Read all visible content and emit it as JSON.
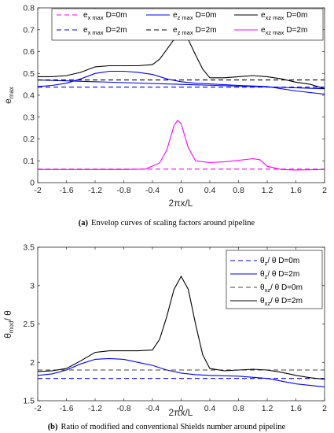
{
  "chart_data": [
    {
      "type": "line",
      "caption_tag": "(a)",
      "caption": "Envelop curves of scaling factors around pipeline",
      "xlabel": "2πx/L",
      "ylabel": "e",
      "ylabel_sub": "max",
      "xlim": [
        -2,
        2
      ],
      "ylim": [
        0,
        0.8
      ],
      "xticks": [
        -2,
        -1.6,
        -1.2,
        -0.8,
        -0.4,
        0,
        0.4,
        0.8,
        1.2,
        1.6,
        2
      ],
      "xtick_labels": [
        "-2",
        "-1.6",
        "-1.2",
        "-0.8",
        "-0.4",
        "0",
        "0.4",
        "0.8",
        "1.2",
        "1.6",
        "2"
      ],
      "yticks": [
        0,
        0.1,
        0.2,
        0.3,
        0.4,
        0.5,
        0.6,
        0.7,
        0.8
      ],
      "ytick_labels": [
        "0",
        "0.1",
        "0.2",
        "0.3",
        "0.4",
        "0.5",
        "0.6",
        "0.7",
        "0.8"
      ],
      "legend_position": "top",
      "series": [
        {
          "name": "e_x max D=0m",
          "label_main": "e",
          "label_sub": "x max",
          "label_tail": "D=0m",
          "color": "#ff00ff",
          "dash": "dashed",
          "x": [
            -2,
            2
          ],
          "y": [
            0.062,
            0.062
          ]
        },
        {
          "name": "e_x max D=2m",
          "label_main": "e",
          "label_sub": "x max",
          "label_tail": "D=2m",
          "color": "#0000ff",
          "dash": "dashed",
          "x": [
            -2,
            2
          ],
          "y": [
            0.437,
            0.437
          ]
        },
        {
          "name": "e_z max D=0m",
          "label_main": "e",
          "label_sub": "z max",
          "label_tail": "D=0m",
          "color": "#0000ff",
          "dash": "solid",
          "x": [
            -2,
            2
          ],
          "y": [
            0.47,
            0.43
          ]
        },
        {
          "name": "e_z max D=2m",
          "label_main": "e",
          "label_sub": "z max",
          "label_tail": "D=2m",
          "color": "#000000",
          "dash": "dashed",
          "x": [
            -2,
            2
          ],
          "y": [
            0.47,
            0.47
          ]
        },
        {
          "name": "e_xz max D=0m",
          "label_main": "e",
          "label_sub": "xz max",
          "label_tail": "D=0m",
          "color": "#000000",
          "dash": "solid",
          "x": [
            -2,
            -1.8,
            -1.6,
            -1.4,
            -1.2,
            -1.0,
            -0.8,
            -0.6,
            -0.4,
            -0.3,
            -0.2,
            -0.1,
            0,
            0.1,
            0.2,
            0.3,
            0.4,
            0.6,
            0.8,
            1.0,
            1.2,
            1.4,
            1.6,
            1.8,
            2.0
          ],
          "y": [
            0.485,
            0.485,
            0.49,
            0.505,
            0.53,
            0.535,
            0.535,
            0.535,
            0.54,
            0.565,
            0.61,
            0.655,
            0.68,
            0.655,
            0.585,
            0.52,
            0.48,
            0.48,
            0.485,
            0.49,
            0.485,
            0.475,
            0.46,
            0.45,
            0.43
          ]
        },
        {
          "name": "e_xz max D=2m",
          "label_main": "e",
          "label_sub": "xz max",
          "label_tail": "D=2m",
          "color": "#ff00ff",
          "dash": "solid",
          "x": [
            -2,
            -1.6,
            -1.2,
            -0.8,
            -0.5,
            -0.3,
            -0.2,
            -0.1,
            -0.05,
            0,
            0.1,
            0.2,
            0.4,
            0.6,
            0.8,
            1.0,
            1.1,
            1.2,
            1.4,
            1.6,
            2.0
          ],
          "y": [
            0.06,
            0.06,
            0.06,
            0.06,
            0.062,
            0.09,
            0.15,
            0.26,
            0.285,
            0.27,
            0.16,
            0.1,
            0.092,
            0.095,
            0.102,
            0.11,
            0.105,
            0.075,
            0.06,
            0.058,
            0.06
          ]
        },
        {
          "name": "e_z max D=2m solid",
          "label_main": "",
          "label_sub": "",
          "label_tail": "",
          "color": "#0000ff",
          "dash": "solid-hidden",
          "x": [
            -2,
            2
          ],
          "y": [
            0,
            0
          ]
        }
      ],
      "extra_curves": [
        {
          "color": "#0000ff",
          "dash": "solid",
          "x": [
            -2,
            -1.8,
            -1.6,
            -1.4,
            -1.2,
            -1.0,
            -0.8,
            -0.6,
            -0.4,
            -0.2,
            0,
            0.2,
            0.4,
            0.8,
            1.2,
            1.6,
            2.0
          ],
          "y": [
            0.44,
            0.445,
            0.455,
            0.475,
            0.5,
            0.51,
            0.51,
            0.505,
            0.495,
            0.475,
            0.462,
            0.455,
            0.452,
            0.445,
            0.44,
            0.42,
            0.405
          ]
        }
      ]
    },
    {
      "type": "line",
      "caption_tag": "(b)",
      "caption": "Ratio of modified and conventional Shields number around pipeline",
      "xlabel": "2πx/L",
      "ylabel": "θ",
      "ylabel_sub": "mod",
      "ylabel_tail": "/ θ",
      "xlim": [
        -2,
        2
      ],
      "ylim": [
        1.5,
        3.5
      ],
      "xticks": [
        -2,
        -1.6,
        -1.2,
        -0.8,
        -0.4,
        0,
        0.4,
        0.8,
        1.2,
        1.6,
        2
      ],
      "xtick_labels": [
        "-2",
        "-1.6",
        "-1.2",
        "-0.8",
        "-0.4",
        "0",
        "0.4",
        "0.8",
        "1.2",
        "1.6",
        "2"
      ],
      "yticks": [
        1.5,
        2,
        2.5,
        3,
        3.5
      ],
      "ytick_labels": [
        "1.5",
        "2",
        "2.5",
        "3",
        "3.5"
      ],
      "legend_position": "top-right",
      "series": [
        {
          "name": "θz/ θ D=0m",
          "label_main": "θ",
          "label_sub": "z",
          "label_tail": "/ θ  D=0m",
          "color": "#0000ff",
          "dash": "dashed",
          "x": [
            -2,
            2
          ],
          "y": [
            1.79,
            1.79
          ]
        },
        {
          "name": "θz/ θ D=2m",
          "label_main": "θ",
          "label_sub": "z",
          "label_tail": "/ θ  D=2m",
          "color": "#0000ff",
          "dash": "solid",
          "x": [
            -2,
            -1.8,
            -1.6,
            -1.4,
            -1.2,
            -1.0,
            -0.8,
            -0.6,
            -0.4,
            -0.2,
            0,
            0.2,
            0.4,
            0.8,
            1.2,
            1.6,
            2.0
          ],
          "y": [
            1.83,
            1.85,
            1.9,
            1.98,
            2.04,
            2.05,
            2.04,
            2.0,
            1.96,
            1.9,
            1.86,
            1.84,
            1.83,
            1.82,
            1.79,
            1.72,
            1.68
          ]
        },
        {
          "name": "θxz/ θ D=0m",
          "label_main": "θ",
          "label_sub": "xz",
          "label_tail": "/ θ D=0m",
          "color": "#404040",
          "dash": "dashed",
          "x": [
            -2,
            2
          ],
          "y": [
            1.9,
            1.9
          ]
        },
        {
          "name": "θxz/ θ D=2m",
          "label_main": "θ",
          "label_sub": "xz",
          "label_tail": "/ θ  D=2m",
          "color": "#000000",
          "dash": "solid",
          "x": [
            -2,
            -1.8,
            -1.6,
            -1.4,
            -1.2,
            -1.0,
            -0.8,
            -0.6,
            -0.4,
            -0.3,
            -0.2,
            -0.1,
            0,
            0.1,
            0.2,
            0.3,
            0.4,
            0.6,
            0.8,
            1.0,
            1.2,
            1.4,
            1.6,
            1.8,
            2.0
          ],
          "y": [
            1.88,
            1.89,
            1.92,
            2.02,
            2.13,
            2.15,
            2.15,
            2.15,
            2.16,
            2.3,
            2.6,
            2.95,
            3.12,
            2.95,
            2.5,
            2.1,
            1.92,
            1.89,
            1.9,
            1.91,
            1.9,
            1.87,
            1.83,
            1.8,
            1.78
          ]
        }
      ]
    }
  ]
}
